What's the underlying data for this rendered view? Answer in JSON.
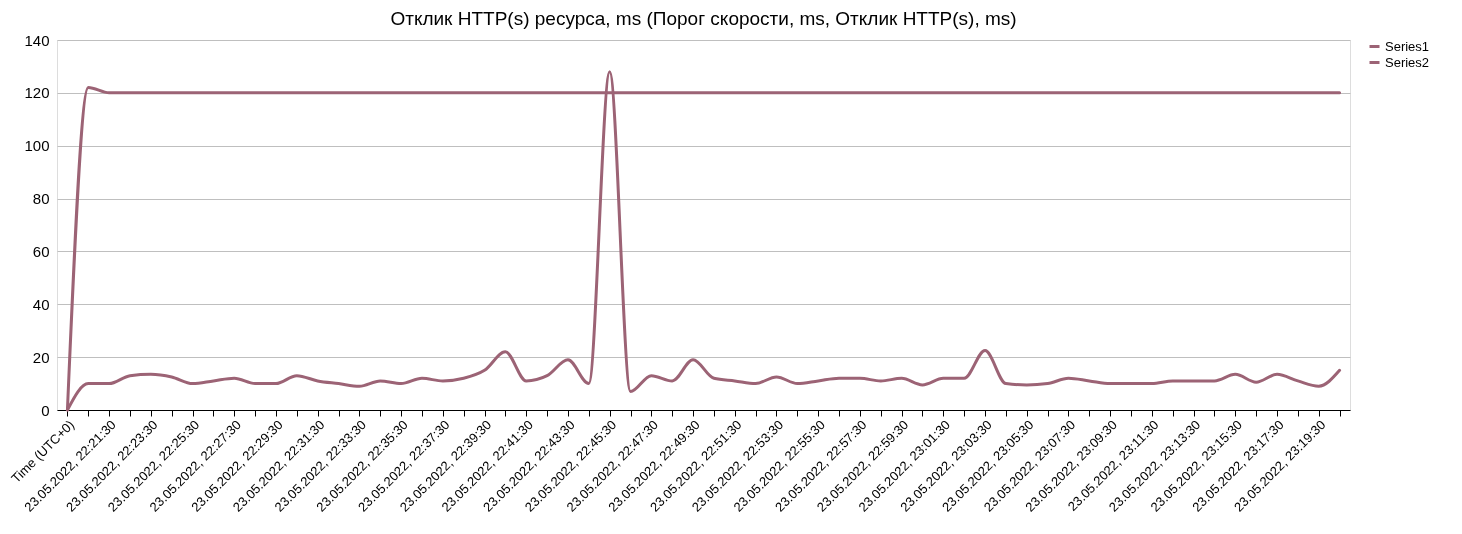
{
  "chart_data": {
    "type": "line",
    "title": "Отклик HTTP(s) ресурса, ms (Порог скорости, ms, Отклик HTTP(s), ms)",
    "categories": [
      "Time (UTC+0)",
      null,
      "23.05.2022, 22:21:30",
      null,
      "23.05.2022, 22:23:30",
      null,
      "23.05.2022, 22:25:30",
      null,
      "23.05.2022, 22:27:30",
      null,
      "23.05.2022, 22:29:30",
      null,
      "23.05.2022, 22:31:30",
      null,
      "23.05.2022, 22:33:30",
      null,
      "23.05.2022, 22:35:30",
      null,
      "23.05.2022, 22:37:30",
      null,
      "23.05.2022, 22:39:30",
      null,
      "23.05.2022, 22:41:30",
      null,
      "23.05.2022, 22:43:30",
      null,
      "23.05.2022, 22:45:30",
      null,
      "23.05.2022, 22:47:30",
      null,
      "23.05.2022, 22:49:30",
      null,
      "23.05.2022, 22:51:30",
      null,
      "23.05.2022, 22:53:30",
      null,
      "23.05.2022, 22:55:30",
      null,
      "23.05.2022, 22:57:30",
      null,
      "23.05.2022, 22:59:30",
      null,
      "23.05.2022, 23:01:30",
      null,
      "23.05.2022, 23:03:30",
      null,
      "23.05.2022, 23:05:30",
      null,
      "23.05.2022, 23:07:30",
      null,
      "23.05.2022, 23:09:30",
      null,
      "23.05.2022, 23:11:30",
      null,
      "23.05.2022, 23:13:30",
      null,
      "23.05.2022, 23:15:30",
      null,
      "23.05.2022, 23:17:30",
      null,
      "23.05.2022, 23:19:30",
      null
    ],
    "series": [
      {
        "name": "Series1",
        "color": "#9c6375",
        "values": [
          0,
          122,
          120,
          120,
          120,
          120,
          120,
          120,
          120,
          120,
          120,
          120,
          120,
          120,
          120,
          120,
          120,
          120,
          120,
          120,
          120,
          120,
          120,
          120,
          120,
          120,
          120,
          120,
          120,
          120,
          120,
          120,
          120,
          120,
          120,
          120,
          120,
          120,
          120,
          120,
          120,
          120,
          120,
          120,
          120,
          120,
          120,
          120,
          120,
          120,
          120,
          120,
          120,
          120,
          120,
          120,
          120,
          120,
          120,
          120,
          120,
          120
        ]
      },
      {
        "name": "Series2",
        "color": "#9c6375",
        "values": [
          0,
          10,
          10,
          13,
          13.5,
          12.5,
          10,
          11,
          12,
          10,
          10,
          13,
          11,
          10,
          9,
          11,
          10,
          12,
          11,
          12,
          15,
          22,
          11,
          13,
          19,
          10,
          128,
          7,
          13,
          11,
          19,
          12,
          11,
          10,
          12.5,
          10,
          11,
          12,
          12,
          11,
          12,
          9.5,
          12,
          12,
          22.5,
          10,
          9.5,
          10,
          12,
          11,
          10,
          10,
          10,
          11,
          11,
          11,
          13.5,
          10.5,
          13.5,
          11,
          9,
          15
        ]
      }
    ],
    "ylim": [
      0,
      140
    ],
    "yticks": [
      0,
      20,
      40,
      60,
      80,
      100,
      120,
      140
    ],
    "grid": "y",
    "legend": "right",
    "marker": "none"
  }
}
